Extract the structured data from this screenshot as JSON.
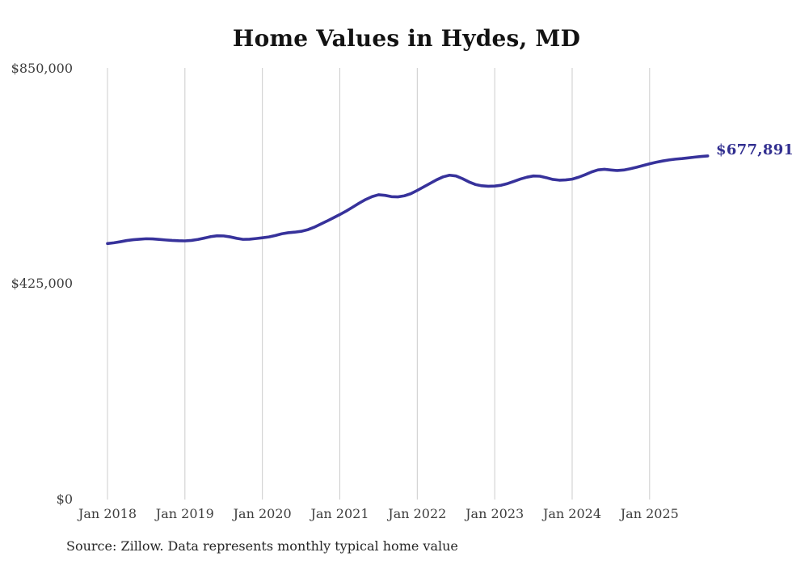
{
  "chart_data": {
    "type": "line",
    "title": "Home Values in Hydes, MD",
    "xlabel": "",
    "ylabel": "",
    "ylim": [
      0,
      850000
    ],
    "grid": "vertical-only",
    "legend": "none",
    "line_color": "#37329b",
    "gridline_color": "#cccccc",
    "y_ticks": [
      {
        "value": 850000,
        "label": "$850,000"
      },
      {
        "value": 425000,
        "label": "$425,000"
      },
      {
        "value": 0,
        "label": "$0"
      }
    ],
    "x_ticks": [
      "Jan 2018",
      "Jan 2019",
      "Jan 2020",
      "Jan 2021",
      "Jan 2022",
      "Jan 2023",
      "Jan 2024",
      "Jan 2025"
    ],
    "end_label": "$677,891",
    "end_value": 677891,
    "series": [
      {
        "name": "Monthly typical home value",
        "start_month": "2018-01",
        "end_month": "2025-10",
        "interval": "monthly",
        "values": [
          505000,
          506500,
          508600,
          511000,
          512600,
          513600,
          514500,
          514200,
          513200,
          512100,
          511200,
          510600,
          510300,
          511200,
          513100,
          515800,
          518700,
          520400,
          520100,
          518200,
          515400,
          513300,
          513600,
          514900,
          516400,
          518100,
          520900,
          524300,
          526400,
          527500,
          529100,
          532200,
          537100,
          543200,
          549300,
          555800,
          562300,
          569200,
          576900,
          584800,
          591900,
          597700,
          601300,
          600100,
          597600,
          597100,
          599200,
          603400,
          609900,
          616900,
          623900,
          630800,
          636600,
          639900,
          638400,
          633100,
          626700,
          621600,
          619000,
          618000,
          618500,
          620100,
          623400,
          627900,
          632400,
          636000,
          638400,
          637900,
          635000,
          631600,
          630100,
          630600,
          632100,
          635900,
          640800,
          646300,
          650300,
          651500,
          650200,
          649100,
          650100,
          652600,
          655600,
          659100,
          662400,
          665400,
          667900,
          670000,
          671600,
          672700,
          674100,
          675600,
          676900,
          677891
        ]
      }
    ]
  },
  "source": {
    "text": "Source: Zillow. Data represents monthly typical home value"
  }
}
